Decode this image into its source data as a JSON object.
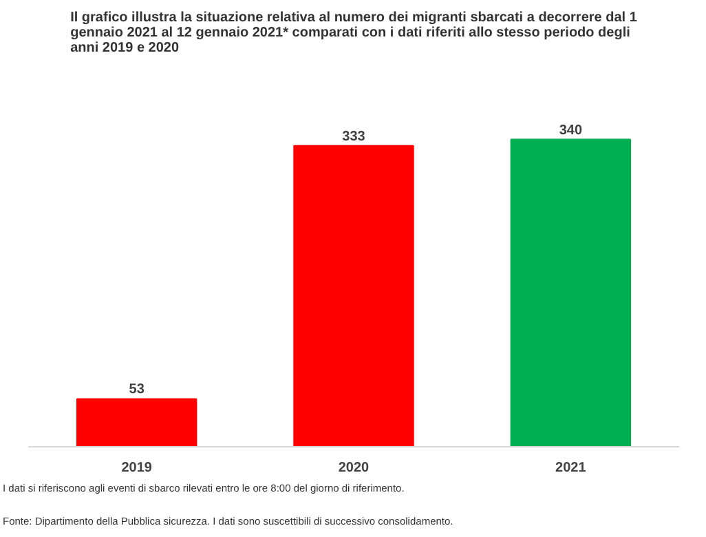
{
  "chart_data": {
    "type": "bar",
    "title": "Il grafico illustra la situazione relativa al numero dei migranti sbarcati a decorrere dal 1 gennaio 2021 al 12 gennaio 2021* comparati con i dati riferiti allo stesso periodo degli anni 2019  e 2020",
    "categories": [
      "2019",
      "2020",
      "2021"
    ],
    "values": [
      53,
      333,
      340
    ],
    "colors": [
      "#ff0000",
      "#ff0000",
      "#00b050"
    ],
    "data_labels": true,
    "grid": false,
    "annotations": [
      "I dati si riferiscono agli eventi di sbarco rilevati entro le ore 8:00 del giorno di riferimento.",
      "Fonte: Dipartimento della Pubblica sicurezza. I dati sono suscettibili di successivo consolidamento."
    ]
  }
}
